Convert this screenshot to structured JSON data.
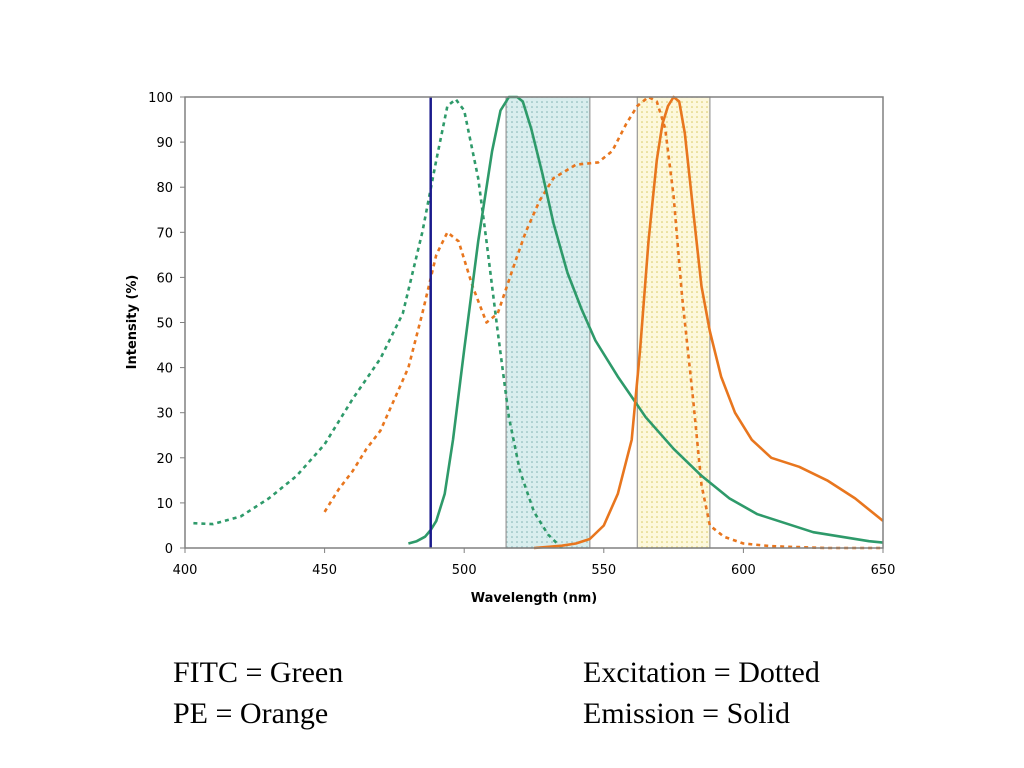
{
  "chart_data": {
    "type": "line",
    "xlabel": "Wavelength (nm)",
    "ylabel": "Intensity (%)",
    "xlim": [
      400,
      650
    ],
    "ylim": [
      0,
      100
    ],
    "x_ticks": [
      400,
      450,
      500,
      550,
      600,
      650
    ],
    "y_ticks": [
      0,
      10,
      20,
      30,
      40,
      50,
      60,
      70,
      80,
      90,
      100
    ],
    "grid": false,
    "colors": {
      "fitc": "#2e9a6a",
      "pe": "#e8761e",
      "laser": "#1a1a8c",
      "filter_border": "#999999"
    },
    "laser_line": {
      "x": 488
    },
    "filter_bands": [
      {
        "x_min": 515,
        "x_max": 545,
        "fill": "#d9eeee",
        "dot": "#7fb2b2"
      },
      {
        "x_min": 562,
        "x_max": 588,
        "fill": "#fdf8dc",
        "dot": "#d8c860"
      }
    ],
    "series": [
      {
        "style": "dotted",
        "color": "#2e9a6a",
        "x": [
          403,
          410,
          420,
          430,
          440,
          450,
          460,
          470,
          478,
          485,
          490,
          494,
          497,
          500,
          505,
          508,
          512,
          516,
          520,
          525,
          530,
          535
        ],
        "y": [
          5.5,
          5.3,
          7,
          11,
          16,
          23,
          33,
          42,
          52,
          70,
          86,
          98,
          99.5,
          97,
          82,
          68,
          48,
          29,
          17,
          8,
          3,
          0
        ]
      },
      {
        "style": "dotted",
        "color": "#e8761e",
        "x": [
          450,
          455,
          460,
          465,
          470,
          475,
          480,
          485,
          490,
          494,
          498,
          503,
          508,
          512,
          518,
          522,
          527,
          532,
          540,
          548,
          553,
          558,
          562,
          566,
          569,
          572,
          575,
          578,
          582,
          585,
          588,
          593,
          600,
          610,
          620,
          630,
          650
        ],
        "y": [
          8,
          13,
          17,
          22,
          26,
          33,
          40,
          52,
          65,
          70,
          68,
          58,
          50,
          52,
          63,
          70,
          77,
          82,
          85,
          85.5,
          88,
          94,
          98,
          100,
          99,
          93,
          78,
          56,
          33,
          14,
          5,
          2.5,
          1,
          0.4,
          0.2,
          0,
          0
        ]
      },
      {
        "style": "solid",
        "color": "#2e9a6a",
        "x": [
          480,
          483,
          486,
          488,
          490,
          493,
          496,
          500,
          505,
          510,
          513,
          516,
          519,
          521,
          524,
          528,
          532,
          537,
          542,
          547,
          555,
          565,
          575,
          585,
          595,
          605,
          615,
          625,
          635,
          645,
          650
        ],
        "y": [
          1,
          1.5,
          2.5,
          4,
          6,
          12,
          24,
          44,
          68,
          88,
          97,
          100,
          100,
          99,
          93,
          83,
          72,
          61,
          53,
          46,
          38,
          29,
          22,
          16,
          11,
          7.5,
          5.5,
          3.5,
          2.5,
          1.5,
          1.2
        ]
      },
      {
        "style": "solid",
        "color": "#e8761e",
        "x": [
          525,
          535,
          540,
          545,
          550,
          555,
          560,
          563,
          566,
          569,
          571,
          573,
          575,
          577,
          579,
          582,
          585,
          588,
          592,
          597,
          603,
          610,
          620,
          630,
          640,
          650
        ],
        "y": [
          0,
          0.5,
          1,
          2,
          5,
          12,
          24,
          44,
          68,
          86,
          94,
          98,
          100,
          99,
          92,
          75,
          58,
          48,
          38,
          30,
          24,
          20,
          18,
          15,
          11,
          6
        ]
      }
    ]
  },
  "legend": {
    "fitc": "FITC = Green",
    "pe": "PE = Orange",
    "excitation": "Excitation = Dotted",
    "emission": "Emission = Solid"
  }
}
